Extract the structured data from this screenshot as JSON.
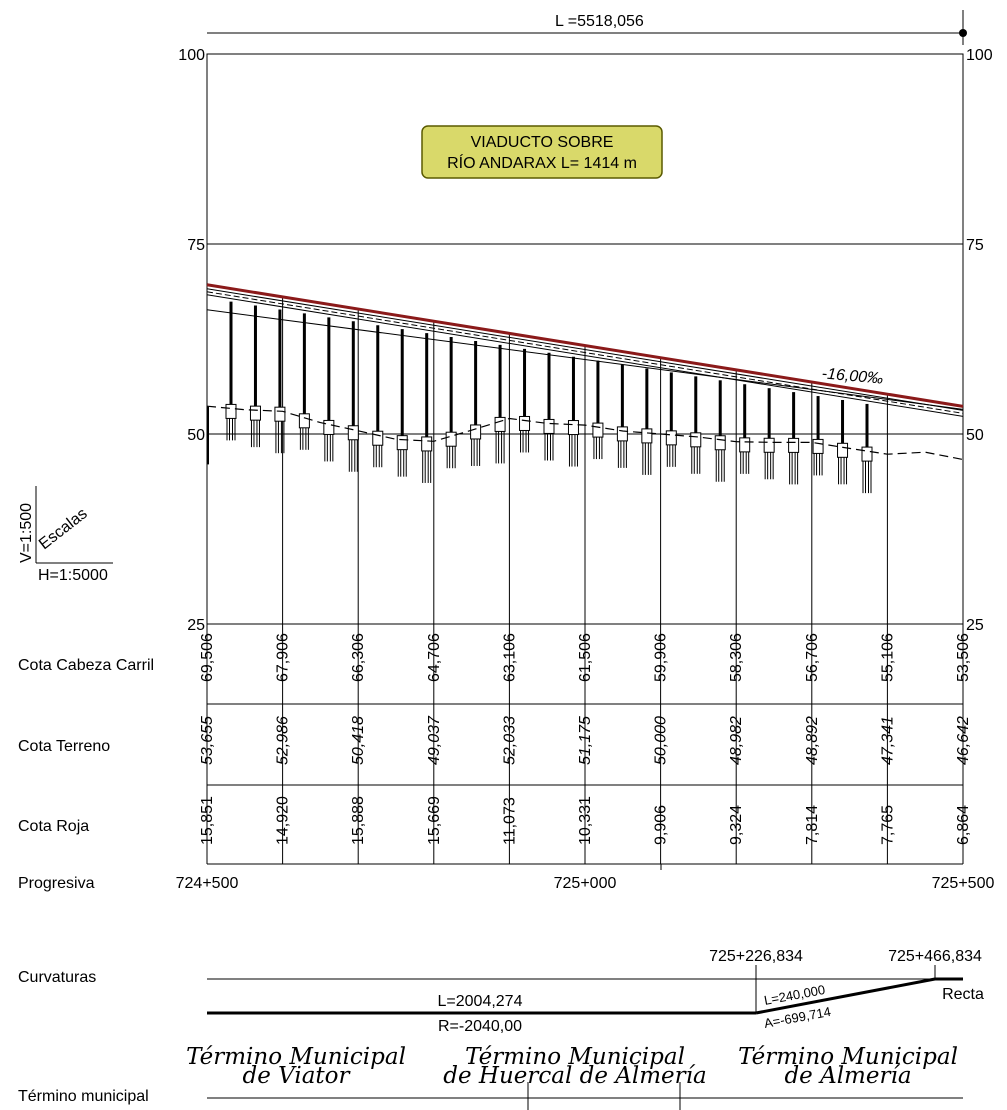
{
  "total_length_label": "L =5518,056",
  "viaduct_box": {
    "line1": "VIADUCTO SOBRE",
    "line2": "RÍO ANDARAX L= 1414 m",
    "fill": "#d9d96a",
    "stroke": "#5a5a00"
  },
  "slope_label": "-16,00‰",
  "scales": {
    "vertical": "V=1:500",
    "title": "Escalas",
    "horizontal": "H=1:5000"
  },
  "row_labels": {
    "cota_cabeza_carril": "Cota Cabeza Carril",
    "cota_terreno": "Cota Terreno",
    "cota_roja": "Cota Roja",
    "progresiva": "Progresiva",
    "curvaturas": "Curvaturas",
    "termino_municipal": "Término municipal"
  },
  "progresiva_labels": [
    "724+500",
    "725+000",
    "725+500"
  ],
  "curvaturas": {
    "start_pk": "725+226,834",
    "end_pk": "725+466,834",
    "curve_length": "L=2004,274",
    "curve_radius": "R=-2040,00",
    "transition_length": "L=240,000",
    "transition_param": "A=-699,714",
    "straight": "Recta"
  },
  "terminos": [
    {
      "line1": "Término Municipal",
      "line2": "de Viator"
    },
    {
      "line1": "Término Municipal",
      "line2": "de Huercal de Almería"
    },
    {
      "line1": "Término Municipal",
      "line2": "de Almería"
    }
  ],
  "chart_data": {
    "type": "line",
    "title": "",
    "xlabel": "",
    "ylabel": "",
    "ylim": [
      25,
      100
    ],
    "y_ticks": [
      25,
      50,
      75,
      100
    ],
    "xlim_pk_m": [
      724500,
      725500
    ],
    "grid": true,
    "stations_pk_m": [
      724500,
      724600,
      724700,
      724800,
      724900,
      725000,
      725100,
      725200,
      725300,
      725400,
      725500
    ],
    "cota_cabeza_carril": [
      "69,506",
      "67,906",
      "66,306",
      "64,706",
      "63,106",
      "61,506",
      "59,906",
      "58,306",
      "56,706",
      "55,106",
      "53,506"
    ],
    "cota_terreno": [
      "53,655",
      "52,986",
      "50,418",
      "49,037",
      "52,033",
      "51,175",
      "50,000",
      "48,982",
      "48,892",
      "47,341",
      "46,642"
    ],
    "cota_roja": [
      "15,851",
      "14,920",
      "15,888",
      "15,669",
      "11,073",
      "10,331",
      "9,906",
      "9,324",
      "7,814",
      "7,765",
      "6,864"
    ],
    "series": [
      {
        "name": "Cota Cabeza Carril",
        "x": [
          724500,
          725500
        ],
        "y": [
          69.506,
          53.506
        ],
        "color": "#8b1a1a"
      },
      {
        "name": "Cota Terreno",
        "x": [
          724500,
          724550,
          724600,
          724650,
          724700,
          724750,
          724800,
          724850,
          724900,
          724950,
          725000,
          725050,
          725100,
          725150,
          725200,
          725250,
          725300,
          725350,
          725400,
          725450,
          725500
        ],
        "y": [
          53.655,
          53.2,
          52.986,
          51.5,
          50.418,
          49.3,
          49.037,
          50.5,
          52.033,
          51.4,
          51.175,
          50.4,
          50.0,
          49.6,
          48.982,
          48.9,
          48.892,
          48.1,
          47.341,
          47.6,
          46.642
        ],
        "color": "#000000"
      }
    ]
  }
}
